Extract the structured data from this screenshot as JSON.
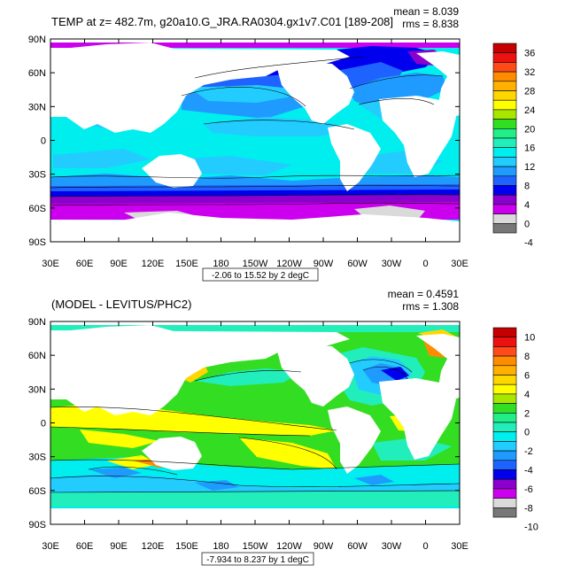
{
  "panels": [
    {
      "title": "TEMP at z= 482.7m, g20a10.G_JRA.RA0304.gx1v7.C01 [189-208]",
      "mean": "mean = 8.039",
      "rms": "rms = 8.838",
      "range_label": "-2.06 to 15.52 by 2 degC",
      "lat_labels": [
        "90N",
        "60N",
        "30N",
        "0",
        "30S",
        "60S",
        "90S"
      ],
      "lon_labels": [
        "30E",
        "60E",
        "90E",
        "120E",
        "150E",
        "180",
        "150W",
        "120W",
        "90W",
        "60W",
        "30W",
        "0",
        "30E"
      ],
      "colorbar_labels": [
        "36",
        "32",
        "28",
        "24",
        "20",
        "16",
        "12",
        "8",
        "4",
        "0",
        "-4"
      ],
      "colorbar_colors": [
        "#c40000",
        "#ee1111",
        "#ff4a1a",
        "#ff8c00",
        "#ffb000",
        "#ffd700",
        "#ffff00",
        "#a8e600",
        "#33dd22",
        "#22ee88",
        "#22eebb",
        "#00eeee",
        "#22ccff",
        "#1f9bff",
        "#1e63ff",
        "#0000ee",
        "#8a00cc",
        "#cc00ee",
        "#dadada",
        "#777777"
      ]
    },
    {
      "title": "(MODEL - LEVITUS/PHC2)",
      "mean": "mean = 0.4591",
      "rms": "rms = 1.308",
      "range_label": "-7.934 to 8.237 by 1 degC",
      "lat_labels": [
        "90N",
        "60N",
        "30N",
        "0",
        "30S",
        "60S",
        "90S"
      ],
      "lon_labels": [
        "30E",
        "60E",
        "90E",
        "120E",
        "150E",
        "180",
        "150W",
        "120W",
        "90W",
        "60W",
        "30W",
        "0",
        "30E"
      ],
      "colorbar_labels": [
        "10",
        "8",
        "6",
        "4",
        "2",
        "0",
        "-2",
        "-4",
        "-6",
        "-8",
        "-10"
      ],
      "colorbar_colors": [
        "#c40000",
        "#ee1111",
        "#ff4a1a",
        "#ff8c00",
        "#ffb000",
        "#ffd700",
        "#ffff00",
        "#a8e600",
        "#33dd22",
        "#22ee88",
        "#22eebb",
        "#00eeee",
        "#22ccff",
        "#1f9bff",
        "#1e63ff",
        "#0000ee",
        "#8a00cc",
        "#cc00ee",
        "#dadada",
        "#777777"
      ]
    }
  ]
}
